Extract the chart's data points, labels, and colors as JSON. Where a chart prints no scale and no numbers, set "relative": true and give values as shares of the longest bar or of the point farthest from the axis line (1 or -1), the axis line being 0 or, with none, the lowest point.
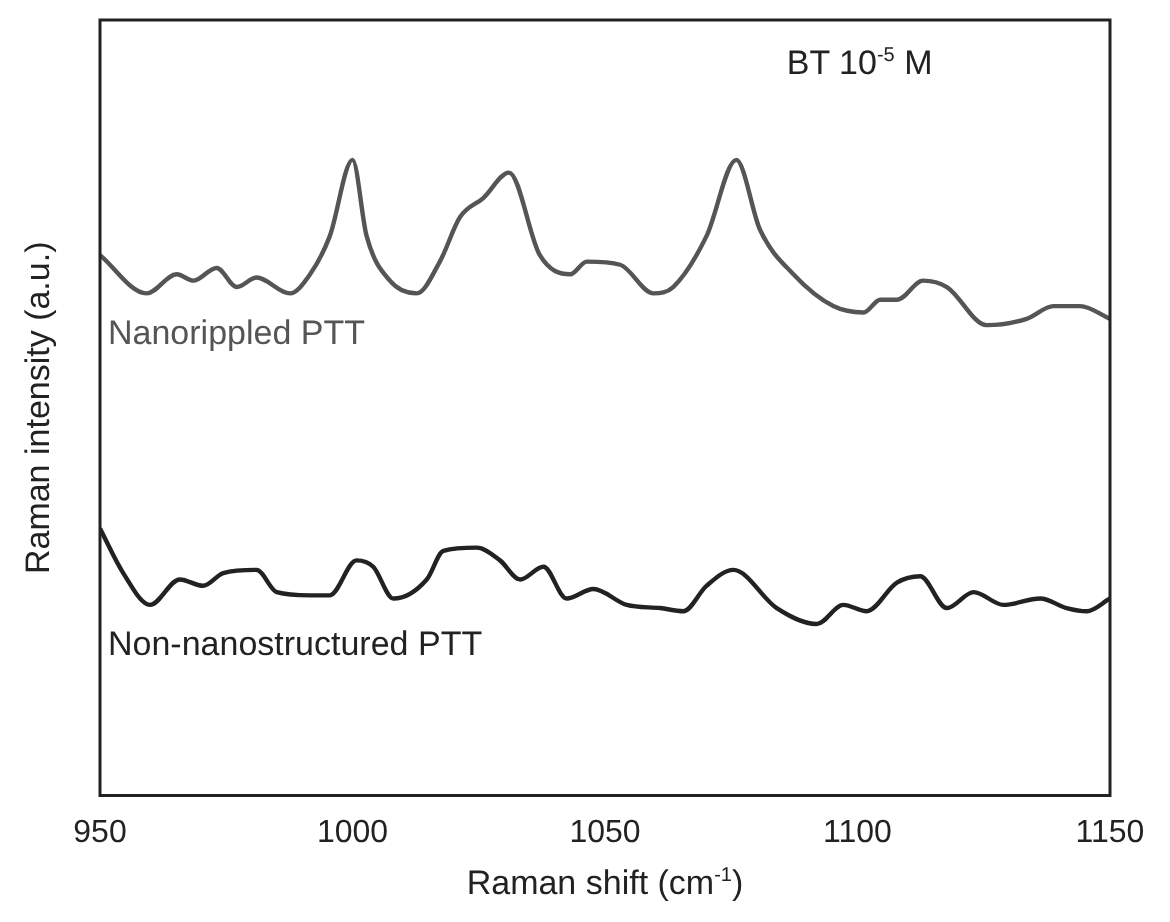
{
  "chart_data": {
    "type": "line",
    "relative": true,
    "xlabel": "Raman shift (cm$^{-1}$)",
    "ylabel": "Raman intensity (a.u.)",
    "annotations": [
      "BT 10$^{-5}$ M"
    ],
    "xlim": [
      950,
      1150
    ],
    "xticks": [
      950,
      1000,
      1050,
      1100,
      1150
    ],
    "grid": false,
    "legend": false,
    "marker": "none",
    "line_style": "solid",
    "series": [
      {
        "name": "Nanorippled PTT",
        "color": "#555555",
        "x": [
          950,
          959.2,
          965.2,
          968.5,
          973.1,
          977.1,
          981,
          987.6,
          991.6,
          995.5,
          1000,
          1002.8,
          1007.4,
          1012.7,
          1017.3,
          1021.3,
          1025.9,
          1031,
          1037.1,
          1043.1,
          1046.4,
          1053,
          1059.6,
          1063.5,
          1070.1,
          1076,
          1080.7,
          1087.3,
          1095.2,
          1101.2,
          1104.5,
          1107.8,
          1113,
          1117.7,
          1125.6,
          1133.5,
          1138.8,
          1144.1,
          1150
        ],
        "values": [
          0.85,
          0.79,
          0.82,
          0.81,
          0.83,
          0.8,
          0.815,
          0.79,
          0.82,
          0.88,
          1,
          0.88,
          0.81,
          0.79,
          0.84,
          0.91,
          0.94,
          0.98,
          0.85,
          0.82,
          0.84,
          0.835,
          0.79,
          0.8,
          0.88,
          1,
          0.89,
          0.82,
          0.77,
          0.76,
          0.78,
          0.78,
          0.81,
          0.8,
          0.74,
          0.75,
          0.77,
          0.77,
          0.75
        ]
      },
      {
        "name": "Non-nanostructured PTT",
        "color": "#222222",
        "x": [
          950,
          954.6,
          959.9,
          965.8,
          970.4,
          974.4,
          981,
          985,
          991.6,
          995.5,
          1000.8,
          1004.1,
          1008.1,
          1014.7,
          1018,
          1024.6,
          1029.2,
          1033.2,
          1037.8,
          1042.4,
          1047.7,
          1054.3,
          1060.9,
          1065.5,
          1070.1,
          1075.4,
          1084,
          1091.9,
          1097.2,
          1101.8,
          1107.8,
          1112.4,
          1117.7,
          1123,
          1128.9,
          1136.2,
          1141.4,
          1145.4,
          1150
        ],
        "values": [
          0.42,
          0.35,
          0.3,
          0.34,
          0.33,
          0.35,
          0.355,
          0.32,
          0.315,
          0.315,
          0.37,
          0.36,
          0.31,
          0.34,
          0.385,
          0.39,
          0.37,
          0.34,
          0.36,
          0.31,
          0.325,
          0.3,
          0.295,
          0.29,
          0.33,
          0.355,
          0.295,
          0.27,
          0.3,
          0.29,
          0.335,
          0.345,
          0.295,
          0.32,
          0.3,
          0.31,
          0.295,
          0.29,
          0.31
        ]
      }
    ]
  }
}
